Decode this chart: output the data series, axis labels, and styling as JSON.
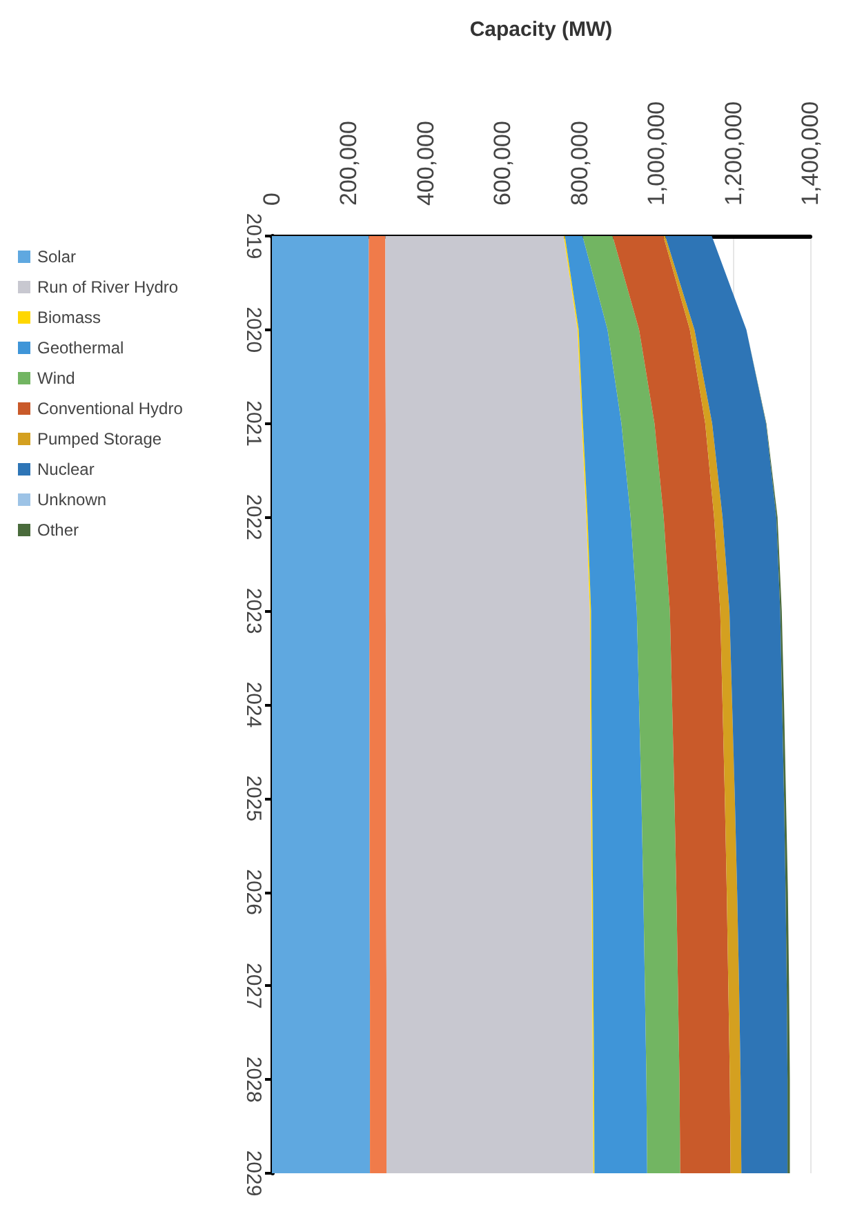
{
  "chart_data": {
    "type": "area",
    "stacked": true,
    "orientation": "horizontal",
    "xlabel": "Capacity (MW)",
    "categories": [
      "2019",
      "2020",
      "2021",
      "2022",
      "2023",
      "2024",
      "2025",
      "2026",
      "2027",
      "2028",
      "2029"
    ],
    "xlim": [
      0,
      1400000
    ],
    "xticks": [
      0,
      {
        "value": 200000,
        "label": "200,000"
      },
      {
        "value": 400000,
        "label": "400,000"
      },
      {
        "value": 600000,
        "label": "600,000"
      },
      {
        "value": 800000,
        "label": "800,000"
      },
      {
        "value": 1000000,
        "label": "1,000,000"
      },
      {
        "value": 1200000,
        "label": "1,200,000"
      },
      {
        "value": 1400000,
        "label": "1,400,000"
      }
    ],
    "grid": "x",
    "legend": "left",
    "marker": "none",
    "series": [
      {
        "name": "Solar",
        "color": "#5fa8e0",
        "values": [
          252000,
          252000,
          253000,
          253000,
          253000,
          254000,
          254000,
          254000,
          255000,
          255000,
          255000
        ]
      },
      {
        "color": "#f07b4a",
        "values": [
          43000,
          43000,
          43000,
          43000,
          43000,
          43000,
          43000,
          43000,
          43000,
          43000,
          43000
        ]
      },
      {
        "name": "Run of River Hydro",
        "color": "#c8c8d0",
        "values": [
          464000,
          500000,
          510000,
          522000,
          531000,
          531000,
          533000,
          535000,
          535000,
          537000,
          538000
        ]
      },
      {
        "name": "Biomass",
        "color": "#ffd700",
        "values": [
          3000,
          3000,
          3000,
          3000,
          3000,
          3000,
          3000,
          3000,
          3000,
          3000,
          3000
        ]
      },
      {
        "name": "Geothermal",
        "color": "#3f95d8",
        "values": [
          46000,
          75000,
          100000,
          112000,
          119000,
          124000,
          128000,
          131000,
          134000,
          136000,
          137000
        ]
      },
      {
        "name": "Wind",
        "color": "#72b562",
        "values": [
          78000,
          82000,
          86000,
          86000,
          86000,
          86000,
          86000,
          86000,
          86000,
          86000,
          86000
        ]
      },
      {
        "name": "Conventional Hydro",
        "color": "#c95a2a",
        "values": [
          132000,
          132000,
          132000,
          131000,
          131000,
          131000,
          131000,
          131000,
          131000,
          131000,
          131000
        ]
      },
      {
        "name": "Pumped Storage",
        "color": "#d4a020",
        "values": [
          5000,
          12000,
          18000,
          22000,
          24000,
          25000,
          26000,
          27000,
          28000,
          28000,
          28000
        ]
      },
      {
        "name": "Nuclear",
        "color": "#2e75b6",
        "values": [
          121000,
          135000,
          140000,
          140000,
          132000,
          130000,
          128000,
          126000,
          124000,
          122000,
          120000
        ]
      },
      {
        "name": "Unknown",
        "color": "#9dc3e6",
        "values": [
          null,
          null,
          null,
          null,
          null,
          null,
          null,
          null,
          null,
          null,
          null
        ]
      },
      {
        "name": "Other",
        "color": "#4a6b3c",
        "values": [
          0,
          0,
          1000,
          3000,
          4000,
          5000,
          5000,
          6000,
          6000,
          6000,
          6000
        ]
      }
    ]
  }
}
